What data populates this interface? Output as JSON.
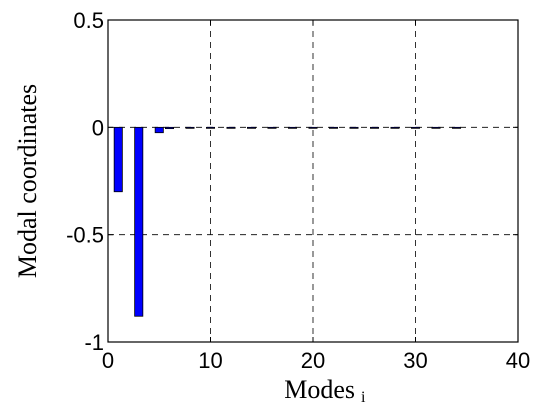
{
  "chart_data": {
    "type": "bar",
    "xlabel": "Modes",
    "xlabel_subscript": "i",
    "ylabel": "Modal coordinates",
    "xlim": [
      0,
      40
    ],
    "ylim": [
      -1,
      0.5
    ],
    "xticks": [
      0,
      10,
      20,
      30,
      40
    ],
    "yticks": [
      0.5,
      0,
      -0.5,
      -1
    ],
    "xtick_labels": [
      "0",
      "10",
      "20",
      "30",
      "40"
    ],
    "ytick_labels": [
      "0.5",
      "0",
      "-0.5",
      "-1"
    ],
    "grid": true,
    "bar_color": "#0000ff",
    "x": [
      1,
      2,
      3,
      4,
      5,
      6,
      7,
      8,
      9,
      10,
      11,
      12,
      13,
      14,
      15,
      16,
      17,
      18,
      19,
      20,
      21,
      22,
      23,
      24,
      25,
      26,
      27,
      28,
      29,
      30,
      31,
      32,
      33,
      34,
      35
    ],
    "values": [
      -0.3,
      0,
      -0.88,
      0,
      -0.025,
      -0.006,
      0,
      -0.003,
      0,
      -0.002,
      0,
      -0.002,
      0,
      -0.002,
      0,
      -0.001,
      0,
      -0.001,
      0,
      -0.001,
      0,
      -0.001,
      0,
      -0.001,
      0,
      -0.001,
      0,
      -0.001,
      0,
      -0.001,
      0,
      -0.001,
      0,
      -0.001,
      0
    ]
  }
}
